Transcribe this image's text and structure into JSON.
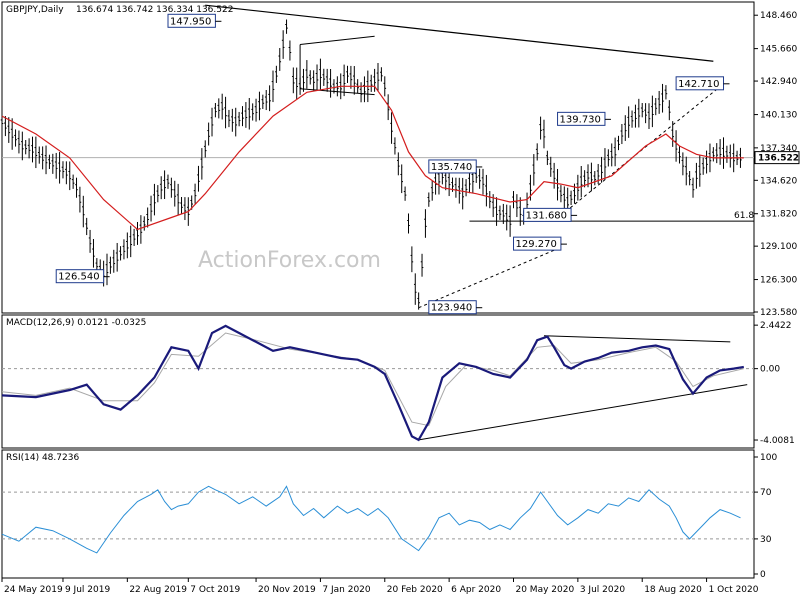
{
  "chart_data": {
    "type": "line",
    "instrument": "GBPJPY,Daily",
    "ohlc_label": "136.674 136.742 136.334 136.522",
    "last_price": "136.522",
    "watermark": "ActionForex.com",
    "price_pane": {
      "ylim": [
        123.58,
        149.4
      ],
      "tick_labels": [
        "148.460",
        "145.660",
        "142.940",
        "140.130",
        "137.340",
        "134.620",
        "131.820",
        "129.100",
        "126.300",
        "123.580"
      ],
      "tick_values": [
        148.46,
        145.66,
        142.94,
        140.13,
        137.34,
        134.62,
        131.82,
        129.1,
        126.3,
        123.58
      ],
      "fib_level": 131.2,
      "fib_label": "61.8",
      "annotations": [
        {
          "label": "147.950",
          "x": 63,
          "price": 147.95
        },
        {
          "label": "142.710",
          "x": 213,
          "price": 142.71
        },
        {
          "label": "139.730",
          "x": 178,
          "price": 139.73
        },
        {
          "label": "135.740",
          "x": 140,
          "price": 135.74
        },
        {
          "label": "131.680",
          "x": 168,
          "price": 131.68
        },
        {
          "label": "129.270",
          "x": 165,
          "price": 129.27
        },
        {
          "label": "126.540",
          "x": 30,
          "price": 126.54
        },
        {
          "label": "123.940",
          "x": 140,
          "price": 123.94
        }
      ],
      "price_series": [
        [
          0,
          139.5
        ],
        [
          3,
          138.5
        ],
        [
          6,
          137.5
        ],
        [
          9,
          137.2
        ],
        [
          12,
          136.5
        ],
        [
          15,
          136.0
        ],
        [
          18,
          135.5
        ],
        [
          20,
          135.0
        ],
        [
          22,
          134.0
        ],
        [
          24,
          132.0
        ],
        [
          26,
          129.5
        ],
        [
          28,
          127.5
        ],
        [
          30,
          126.8
        ],
        [
          32,
          127.5
        ],
        [
          35,
          128.5
        ],
        [
          38,
          129.5
        ],
        [
          41,
          130.5
        ],
        [
          43,
          131.5
        ],
        [
          45,
          133.0
        ],
        [
          47,
          134.0
        ],
        [
          49,
          134.5
        ],
        [
          51,
          133.5
        ],
        [
          53,
          132.5
        ],
        [
          55,
          132.0
        ],
        [
          57,
          133.5
        ],
        [
          59,
          136.0
        ],
        [
          61,
          138.5
        ],
        [
          63,
          140.5
        ],
        [
          65,
          140.8
        ],
        [
          67,
          139.8
        ],
        [
          69,
          139.5
        ],
        [
          71,
          140.0
        ],
        [
          73,
          140.2
        ],
        [
          75,
          140.5
        ],
        [
          77,
          141.2
        ],
        [
          79,
          141.5
        ],
        [
          81,
          143.5
        ],
        [
          83,
          146.0
        ],
        [
          84,
          147.5
        ],
        [
          85,
          145.5
        ],
        [
          86,
          143.0
        ],
        [
          88,
          142.5
        ],
        [
          90,
          143.5
        ],
        [
          92,
          143.0
        ],
        [
          94,
          143.5
        ],
        [
          96,
          143.0
        ],
        [
          98,
          142.5
        ],
        [
          100,
          142.5
        ],
        [
          102,
          143.5
        ],
        [
          104,
          143.0
        ],
        [
          106,
          142.0
        ],
        [
          108,
          142.5
        ],
        [
          110,
          143.0
        ],
        [
          112,
          143.5
        ],
        [
          113,
          142.5
        ],
        [
          115,
          139.0
        ],
        [
          117,
          136.0
        ],
        [
          119,
          133.5
        ],
        [
          120,
          131.0
        ],
        [
          121,
          128.0
        ],
        [
          122,
          125.5
        ],
        [
          123,
          124.5
        ],
        [
          124,
          127.5
        ],
        [
          125,
          131.0
        ],
        [
          126,
          133.0
        ],
        [
          128,
          134.5
        ],
        [
          130,
          135.0
        ],
        [
          132,
          134.5
        ],
        [
          134,
          134.0
        ],
        [
          136,
          133.5
        ],
        [
          138,
          134.5
        ],
        [
          140,
          135.0
        ],
        [
          142,
          134.5
        ],
        [
          144,
          133.0
        ],
        [
          146,
          132.0
        ],
        [
          148,
          131.8
        ],
        [
          150,
          131.2
        ],
        [
          151,
          133.0
        ],
        [
          152,
          132.5
        ],
        [
          154,
          131.5
        ],
        [
          156,
          134.0
        ],
        [
          158,
          137.0
        ],
        [
          159,
          139.0
        ],
        [
          160,
          138.5
        ],
        [
          161,
          136.5
        ],
        [
          163,
          135.0
        ],
        [
          165,
          133.5
        ],
        [
          167,
          132.8
        ],
        [
          169,
          133.5
        ],
        [
          171,
          134.5
        ],
        [
          173,
          135.0
        ],
        [
          175,
          134.8
        ],
        [
          177,
          135.5
        ],
        [
          179,
          136.5
        ],
        [
          181,
          137.0
        ],
        [
          183,
          138.5
        ],
        [
          185,
          139.5
        ],
        [
          187,
          140.0
        ],
        [
          189,
          140.5
        ],
        [
          191,
          140.0
        ],
        [
          193,
          140.8
        ],
        [
          195,
          141.5
        ],
        [
          196,
          142.0
        ],
        [
          197,
          140.5
        ],
        [
          198,
          138.5
        ],
        [
          199,
          137.5
        ],
        [
          201,
          136.0
        ],
        [
          203,
          134.8
        ],
        [
          204,
          134.0
        ],
        [
          205,
          135.0
        ],
        [
          207,
          135.8
        ],
        [
          209,
          136.5
        ],
        [
          210,
          136.8
        ],
        [
          212,
          137.0
        ],
        [
          214,
          136.8
        ],
        [
          216,
          136.5
        ],
        [
          218,
          136.5
        ],
        [
          219,
          136.5
        ]
      ],
      "ma_series": [
        [
          0,
          140.0
        ],
        [
          10,
          138.5
        ],
        [
          20,
          136.5
        ],
        [
          30,
          133.0
        ],
        [
          40,
          130.5
        ],
        [
          50,
          131.5
        ],
        [
          55,
          132.0
        ],
        [
          60,
          133.5
        ],
        [
          70,
          137.0
        ],
        [
          80,
          140.0
        ],
        [
          90,
          142.0
        ],
        [
          100,
          142.5
        ],
        [
          110,
          142.5
        ],
        [
          115,
          140.5
        ],
        [
          120,
          137.0
        ],
        [
          125,
          135.0
        ],
        [
          130,
          134.0
        ],
        [
          140,
          133.5
        ],
        [
          150,
          132.8
        ],
        [
          155,
          133.0
        ],
        [
          160,
          134.5
        ],
        [
          165,
          134.3
        ],
        [
          170,
          134.0
        ],
        [
          180,
          135.0
        ],
        [
          190,
          137.5
        ],
        [
          196,
          138.5
        ],
        [
          200,
          137.5
        ],
        [
          205,
          136.8
        ],
        [
          210,
          136.5
        ],
        [
          219,
          136.5
        ]
      ],
      "resistance_line": {
        "from": [
          60,
          149.3
        ],
        "to": [
          210,
          144.6
        ]
      },
      "support_line": {
        "from": [
          123,
          123.94
        ],
        "to": [
          165,
          129.0
        ]
      },
      "trend_line": {
        "from": [
          165,
          131.68
        ],
        "to": [
          213,
          142.71
        ]
      }
    },
    "macd_pane": {
      "title": "MACD(12,26,9) 0.0121 -0.0325",
      "ylim": [
        -4.4,
        2.9
      ],
      "tick_labels": [
        "2.4422",
        "0.00",
        "-4.0081"
      ],
      "tick_values": [
        2.4422,
        0.0,
        -4.0081
      ],
      "macd_series": [
        [
          0,
          -1.5
        ],
        [
          10,
          -1.6
        ],
        [
          20,
          -1.2
        ],
        [
          25,
          -0.9
        ],
        [
          30,
          -2.0
        ],
        [
          35,
          -2.3
        ],
        [
          40,
          -1.5
        ],
        [
          45,
          -0.5
        ],
        [
          50,
          1.2
        ],
        [
          55,
          1.0
        ],
        [
          58,
          0.0
        ],
        [
          62,
          2.0
        ],
        [
          66,
          2.4
        ],
        [
          70,
          2.0
        ],
        [
          75,
          1.5
        ],
        [
          80,
          1.0
        ],
        [
          85,
          1.2
        ],
        [
          90,
          1.0
        ],
        [
          95,
          0.8
        ],
        [
          100,
          0.6
        ],
        [
          105,
          0.5
        ],
        [
          110,
          0.1
        ],
        [
          113,
          -0.3
        ],
        [
          117,
          -2.0
        ],
        [
          121,
          -3.8
        ],
        [
          123,
          -4.0
        ],
        [
          126,
          -3.0
        ],
        [
          130,
          -0.5
        ],
        [
          135,
          0.3
        ],
        [
          140,
          0.1
        ],
        [
          145,
          -0.3
        ],
        [
          150,
          -0.5
        ],
        [
          155,
          0.5
        ],
        [
          158,
          1.6
        ],
        [
          161,
          1.8
        ],
        [
          163,
          1.2
        ],
        [
          166,
          0.2
        ],
        [
          168,
          0.0
        ],
        [
          172,
          0.4
        ],
        [
          176,
          0.6
        ],
        [
          180,
          0.9
        ],
        [
          185,
          1.0
        ],
        [
          189,
          1.2
        ],
        [
          193,
          1.3
        ],
        [
          197,
          1.1
        ],
        [
          201,
          -0.6
        ],
        [
          204,
          -1.4
        ],
        [
          208,
          -0.5
        ],
        [
          212,
          -0.1
        ],
        [
          216,
          0.0
        ],
        [
          219,
          0.1
        ]
      ],
      "signal_series": [
        [
          0,
          -1.3
        ],
        [
          10,
          -1.5
        ],
        [
          20,
          -1.1
        ],
        [
          30,
          -1.8
        ],
        [
          40,
          -1.8
        ],
        [
          45,
          -0.8
        ],
        [
          50,
          0.8
        ],
        [
          58,
          0.7
        ],
        [
          66,
          2.0
        ],
        [
          75,
          1.6
        ],
        [
          85,
          1.1
        ],
        [
          95,
          0.8
        ],
        [
          105,
          0.5
        ],
        [
          113,
          -0.1
        ],
        [
          121,
          -3.0
        ],
        [
          126,
          -3.2
        ],
        [
          131,
          -1.0
        ],
        [
          137,
          0.2
        ],
        [
          145,
          -0.1
        ],
        [
          150,
          -0.4
        ],
        [
          158,
          1.2
        ],
        [
          163,
          1.3
        ],
        [
          168,
          0.3
        ],
        [
          176,
          0.5
        ],
        [
          185,
          0.9
        ],
        [
          193,
          1.2
        ],
        [
          199,
          0.4
        ],
        [
          204,
          -1.0
        ],
        [
          210,
          -0.4
        ],
        [
          219,
          0.0
        ]
      ],
      "upper_line": {
        "from": [
          160,
          1.85
        ],
        "to": [
          215,
          1.5
        ]
      },
      "lower_line": {
        "from": [
          123,
          -4.0
        ],
        "to": [
          220,
          -0.9
        ]
      }
    },
    "rsi_pane": {
      "title": "RSI(14) 48.7236",
      "ylim": [
        0,
        100
      ],
      "tick_labels": [
        "100",
        "70",
        "30",
        "0"
      ],
      "tick_values": [
        100,
        70,
        30,
        0
      ],
      "levels": [
        70,
        30
      ],
      "rsi_series": [
        [
          0,
          34
        ],
        [
          5,
          28
        ],
        [
          10,
          40
        ],
        [
          15,
          37
        ],
        [
          20,
          30
        ],
        [
          25,
          22
        ],
        [
          28,
          18
        ],
        [
          32,
          35
        ],
        [
          36,
          50
        ],
        [
          40,
          62
        ],
        [
          44,
          68
        ],
        [
          46,
          72
        ],
        [
          48,
          62
        ],
        [
          50,
          55
        ],
        [
          52,
          58
        ],
        [
          55,
          60
        ],
        [
          58,
          70
        ],
        [
          61,
          75
        ],
        [
          63,
          72
        ],
        [
          66,
          68
        ],
        [
          70,
          60
        ],
        [
          74,
          66
        ],
        [
          78,
          58
        ],
        [
          82,
          66
        ],
        [
          84,
          75
        ],
        [
          86,
          60
        ],
        [
          89,
          50
        ],
        [
          92,
          56
        ],
        [
          95,
          48
        ],
        [
          99,
          58
        ],
        [
          102,
          52
        ],
        [
          105,
          56
        ],
        [
          108,
          50
        ],
        [
          111,
          56
        ],
        [
          114,
          48
        ],
        [
          118,
          30
        ],
        [
          121,
          24
        ],
        [
          123,
          20
        ],
        [
          126,
          32
        ],
        [
          129,
          48
        ],
        [
          132,
          52
        ],
        [
          135,
          42
        ],
        [
          138,
          46
        ],
        [
          141,
          44
        ],
        [
          144,
          38
        ],
        [
          147,
          42
        ],
        [
          150,
          38
        ],
        [
          153,
          48
        ],
        [
          156,
          56
        ],
        [
          159,
          70
        ],
        [
          161,
          62
        ],
        [
          164,
          50
        ],
        [
          167,
          42
        ],
        [
          170,
          48
        ],
        [
          173,
          55
        ],
        [
          176,
          52
        ],
        [
          179,
          60
        ],
        [
          182,
          58
        ],
        [
          185,
          65
        ],
        [
          188,
          62
        ],
        [
          191,
          72
        ],
        [
          194,
          64
        ],
        [
          197,
          58
        ],
        [
          199,
          48
        ],
        [
          201,
          36
        ],
        [
          203,
          30
        ],
        [
          205,
          36
        ],
        [
          207,
          42
        ],
        [
          209,
          48
        ],
        [
          212,
          55
        ],
        [
          215,
          52
        ],
        [
          218,
          48
        ]
      ]
    },
    "x_axis": {
      "tick_labels": [
        "24 May 2019",
        "9 Jul 2019",
        "22 Aug 2019",
        "7 Oct 2019",
        "20 Nov 2019",
        "7 Jan 2020",
        "20 Feb 2020",
        "6 Apr 2020",
        "20 May 2020",
        "3 Jul 2020",
        "18 Aug 2020",
        "1 Oct 2020"
      ],
      "tick_index": [
        0,
        18,
        37,
        55,
        75,
        94,
        113,
        132,
        151,
        170,
        189,
        208
      ],
      "index_range": [
        0,
        222
      ]
    }
  }
}
